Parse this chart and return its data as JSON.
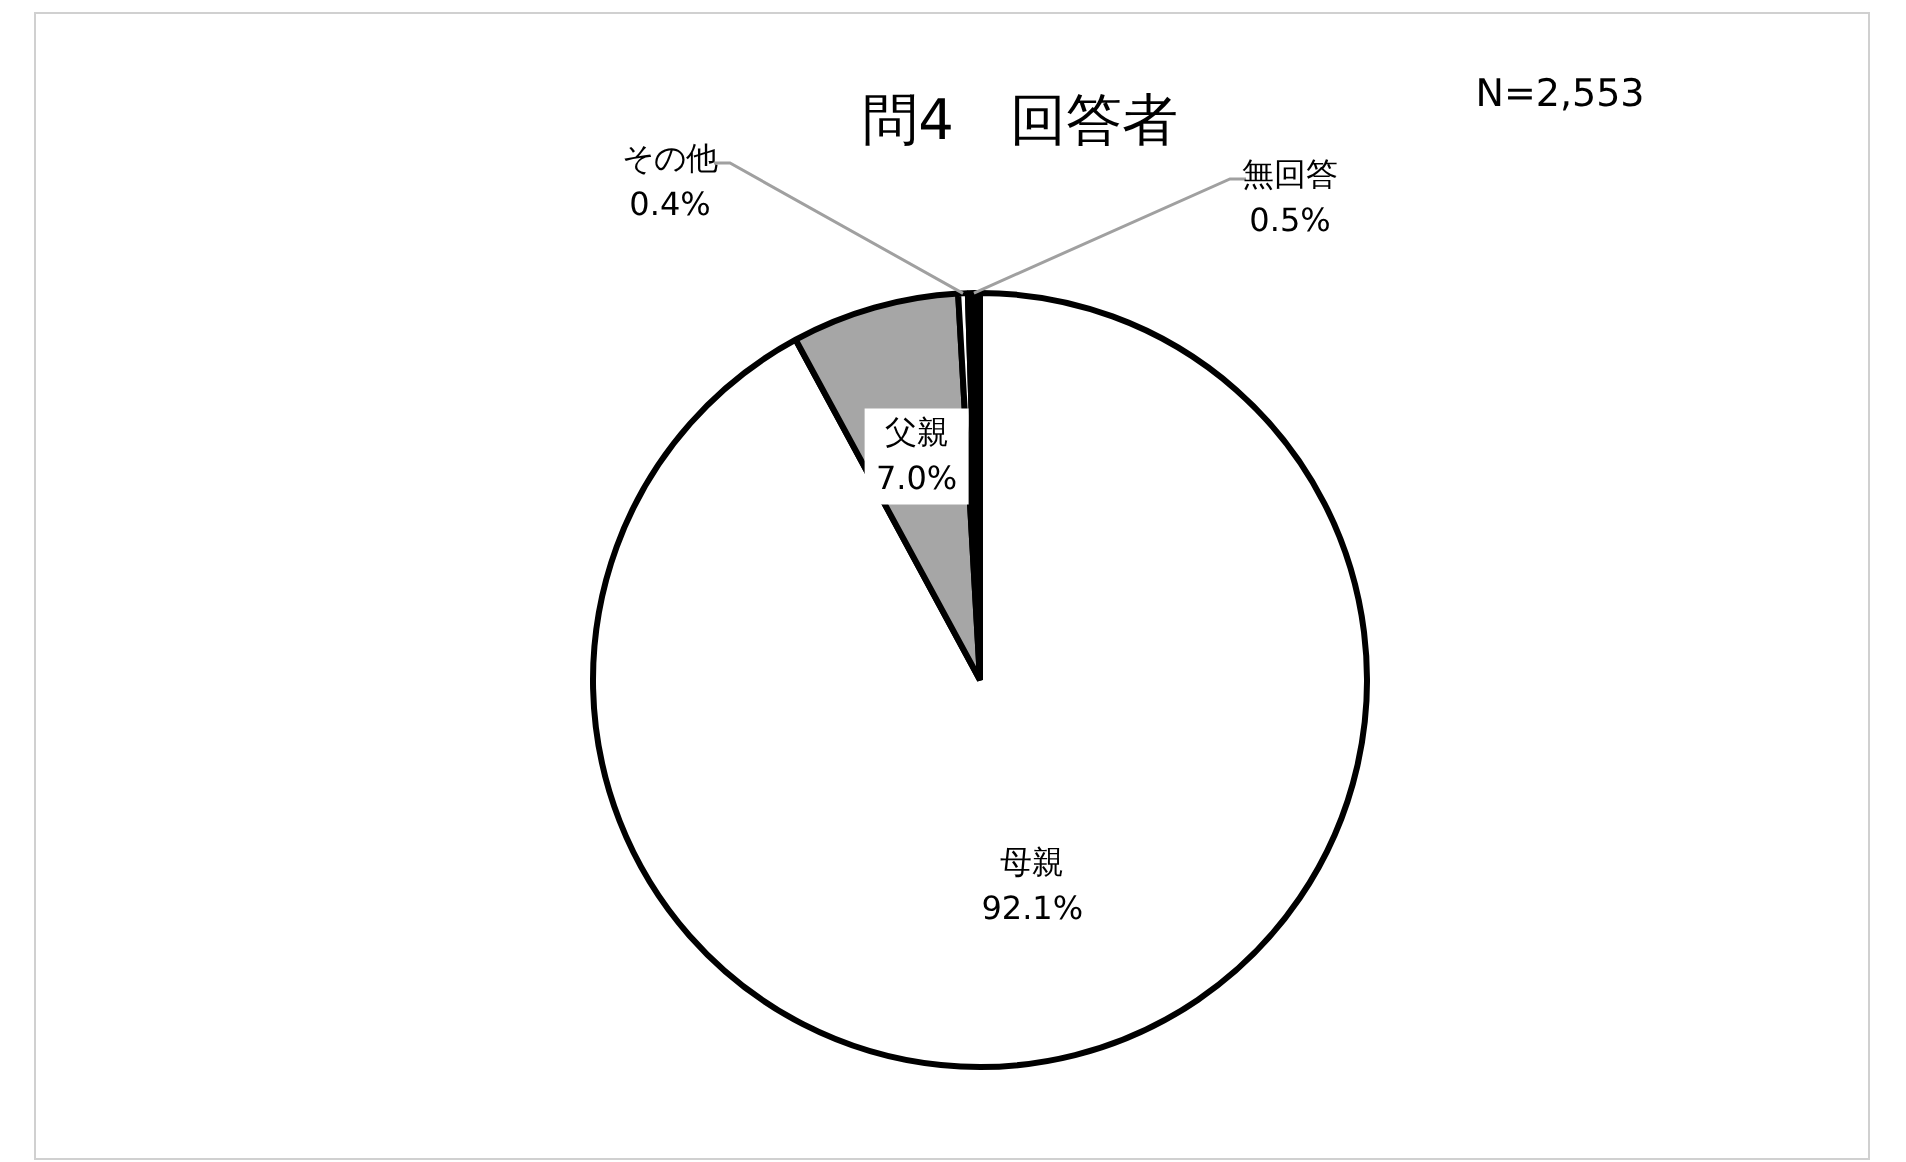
{
  "chart_data": {
    "type": "pie",
    "title": "問4　回答者",
    "annotations": [
      "N=2,553"
    ],
    "categories": [
      "母親",
      "父親",
      "その他",
      "無回答"
    ],
    "values": [
      92.1,
      7.0,
      0.4,
      0.5
    ],
    "colors": [
      "#ffffff",
      "#a6a6a6",
      "#ffffff",
      "#000000"
    ],
    "value_labels": [
      "92.1%",
      "7.0%",
      "0.4%",
      "0.5%"
    ],
    "legend": false
  }
}
